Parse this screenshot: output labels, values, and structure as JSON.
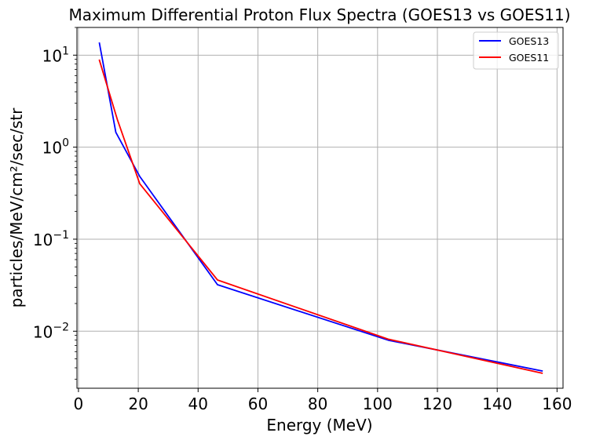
{
  "chart_data": {
    "type": "line",
    "title": "Maximum Differential Proton Flux Spectra (GOES13 vs GOES11)",
    "xlabel": "Energy (MeV)",
    "ylabel": "particles/MeV/cm²/sec/str",
    "xlim": [
      -0.5,
      162
    ],
    "ylim": [
      0.0024,
      20
    ],
    "yscale": "log",
    "grid": true,
    "legend_position": "top-right",
    "x_ticks": [
      0,
      20,
      40,
      60,
      80,
      100,
      120,
      140,
      160
    ],
    "y_ticks": [
      {
        "value": 0.01,
        "base": "10",
        "exp": "−2"
      },
      {
        "value": 0.1,
        "base": "10",
        "exp": "−1"
      },
      {
        "value": 1,
        "base": "10",
        "exp": "0"
      },
      {
        "value": 10,
        "base": "10",
        "exp": "1"
      }
    ],
    "series": [
      {
        "name": "GOES13",
        "color": "#0000ff",
        "x": [
          7,
          12.5,
          20.5,
          46.5,
          103.5,
          155
        ],
        "y": [
          13.5,
          1.45,
          0.48,
          0.032,
          0.008,
          0.0037
        ]
      },
      {
        "name": "GOES11",
        "color": "#ff0000",
        "x": [
          7,
          13,
          20.5,
          46.5,
          103.5,
          155
        ],
        "y": [
          8.8,
          2.0,
          0.4,
          0.036,
          0.0082,
          0.0035
        ]
      }
    ]
  }
}
